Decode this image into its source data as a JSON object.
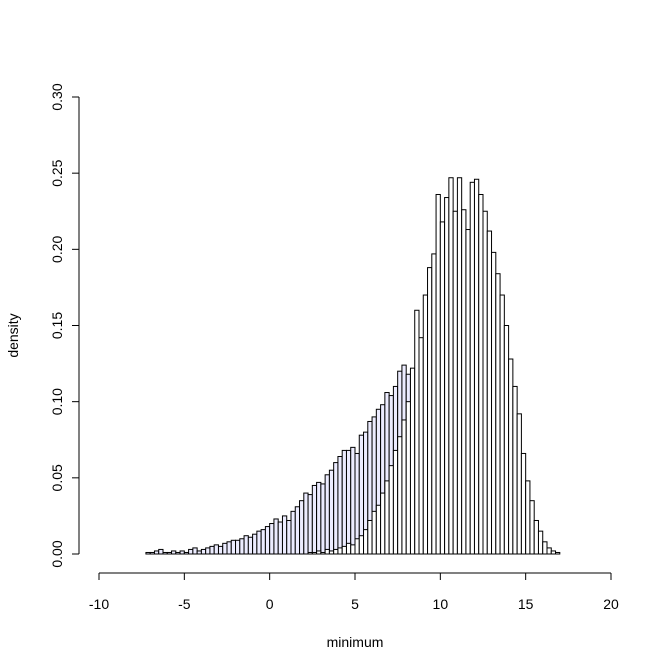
{
  "chart_data": {
    "type": "bar",
    "title": "",
    "xlabel": "minimum",
    "ylabel": "density",
    "xlim": [
      -10,
      20
    ],
    "ylim": [
      0,
      0.3
    ],
    "x_ticks": [
      -10,
      -5,
      0,
      5,
      10,
      15,
      20
    ],
    "y_ticks": [
      0.0,
      0.05,
      0.1,
      0.15,
      0.2,
      0.25,
      0.3
    ],
    "y_tick_labels": [
      "0.00",
      "0.05",
      "0.10",
      "0.15",
      "0.20",
      "0.25",
      "0.30"
    ],
    "grid": false,
    "legend": "none",
    "bin_width": 0.25,
    "series": [
      {
        "color": "#ececff",
        "bin_start": -9.25,
        "values": [
          0,
          0,
          0,
          0,
          0,
          0,
          0,
          0,
          0.001,
          0.001,
          0.002,
          0.003,
          0.001,
          0.001,
          0.002,
          0.001,
          0.002,
          0.001,
          0.003,
          0.004,
          0.002,
          0.003,
          0.004,
          0.005,
          0.006,
          0.005,
          0.007,
          0.008,
          0.009,
          0.009,
          0.01,
          0.012,
          0.011,
          0.013,
          0.015,
          0.016,
          0.018,
          0.02,
          0.023,
          0.021,
          0.025,
          0.022,
          0.028,
          0.031,
          0.035,
          0.04,
          0.039,
          0.045,
          0.047,
          0.046,
          0.052,
          0.055,
          0.06,
          0.064,
          0.068,
          0.068,
          0.07,
          0.066,
          0.078,
          0.08,
          0.087,
          0.09,
          0.095,
          0.098,
          0.106,
          0.104,
          0.11,
          0.12,
          0.124,
          0.118,
          0.121,
          0.117,
          0.123,
          0.13,
          0.115,
          0.128,
          0.122,
          0.112,
          0.126,
          0.11,
          0.104,
          0.098,
          0.102,
          0.09,
          0.084,
          0.072,
          0.068,
          0.058,
          0.05,
          0.041,
          0.032,
          0.024,
          0.016,
          0.01,
          0.006,
          0.003,
          0.002,
          0.001
        ]
      },
      {
        "color": "#ffffff",
        "bin_start": -9.25,
        "values": [
          0,
          0,
          0,
          0,
          0,
          0,
          0,
          0,
          0,
          0,
          0,
          0,
          0,
          0,
          0,
          0,
          0,
          0,
          0,
          0,
          0,
          0,
          0,
          0,
          0,
          0,
          0,
          0,
          0,
          0,
          0,
          0,
          0,
          0,
          0,
          0,
          0,
          0,
          0,
          0,
          0,
          0,
          0,
          0,
          0,
          0,
          0.001,
          0.001,
          0.002,
          0.001,
          0.003,
          0.002,
          0.003,
          0.004,
          0.005,
          0.007,
          0.006,
          0.01,
          0.012,
          0.016,
          0.022,
          0.028,
          0.032,
          0.04,
          0.048,
          0.058,
          0.068,
          0.077,
          0.088,
          0.1,
          0.122,
          0.16,
          0.142,
          0.17,
          0.188,
          0.197,
          0.236,
          0.218,
          0.234,
          0.247,
          0.225,
          0.247,
          0.226,
          0.213,
          0.244,
          0.246,
          0.236,
          0.225,
          0.212,
          0.198,
          0.184,
          0.17,
          0.15,
          0.128,
          0.11,
          0.092,
          0.066,
          0.048,
          0.035,
          0.022,
          0.015,
          0.008,
          0.004,
          0.002,
          0.001
        ]
      }
    ]
  }
}
